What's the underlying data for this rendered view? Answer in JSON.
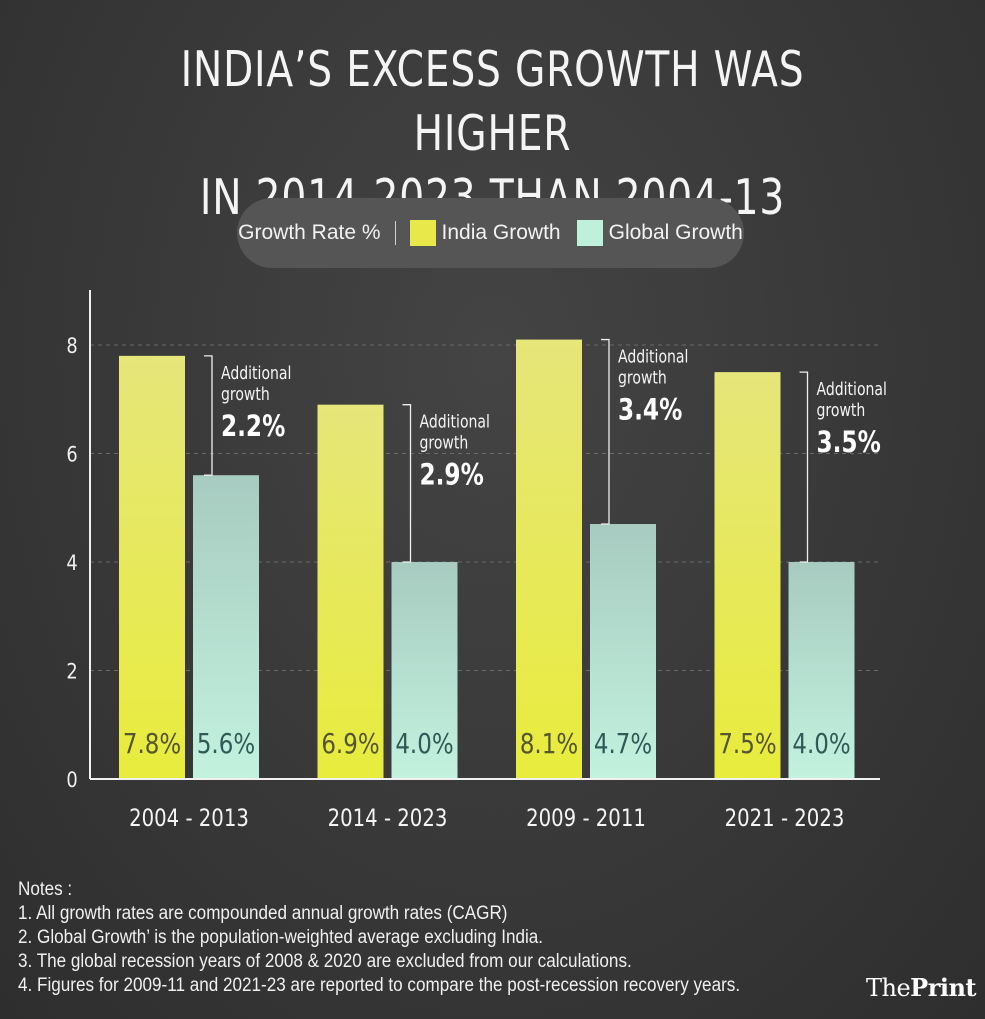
{
  "title_lines": [
    "INDIA’S EXCESS GROWTH WAS HIGHER",
    "IN 2014-2023 THAN 2004-13"
  ],
  "legend": {
    "title": "Growth Rate %",
    "items": [
      {
        "label": "India Growth",
        "color": "#e8e84a"
      },
      {
        "label": "Global Growth",
        "color": "#bff0dc"
      }
    ]
  },
  "colors": {
    "india_top": "#e6e67a",
    "india_bottom": "#e8ec3c",
    "global_top": "#a7cbc0",
    "global_bottom": "#c3f2df",
    "india_label": "#555530",
    "global_label": "#2f5a56",
    "background": "#3a3a3a"
  },
  "chart_data": {
    "type": "bar",
    "categories": [
      "2004 - 2013",
      "2014 - 2023",
      "2009 - 2011",
      "2021 - 2023"
    ],
    "series": [
      {
        "name": "India Growth",
        "values": [
          7.8,
          6.9,
          8.1,
          7.5
        ],
        "labels": [
          "7.8%",
          "6.9%",
          "8.1%",
          "7.5%"
        ]
      },
      {
        "name": "Global Growth",
        "values": [
          5.6,
          4.0,
          4.7,
          4.0
        ],
        "labels": [
          "5.6%",
          "4.0%",
          "4.7%",
          "4.0%"
        ]
      }
    ],
    "yticks": [
      0,
      2,
      4,
      6,
      8
    ],
    "ylim": [
      0,
      9
    ],
    "grid": true,
    "annotations": [
      {
        "text": "Additional growth",
        "value": "2.2%"
      },
      {
        "text": "Additional growth",
        "value": "2.9%"
      },
      {
        "text": "Additional growth",
        "value": "3.4%"
      },
      {
        "text": "Additional growth",
        "value": "3.5%"
      }
    ]
  },
  "notes": {
    "heading": "Notes :",
    "items": [
      "1. All growth rates are compounded annual growth rates (CAGR)",
      "2. Global Growth’ is the population-weighted average excluding India.",
      "3. The global recession years of 2008 & 2020 are excluded from our calculations.",
      "4. Figures for 2009-11 and 2021-23 are reported to compare the post-recession recovery years."
    ]
  },
  "logo": {
    "part1": "The",
    "part2": "Print"
  }
}
